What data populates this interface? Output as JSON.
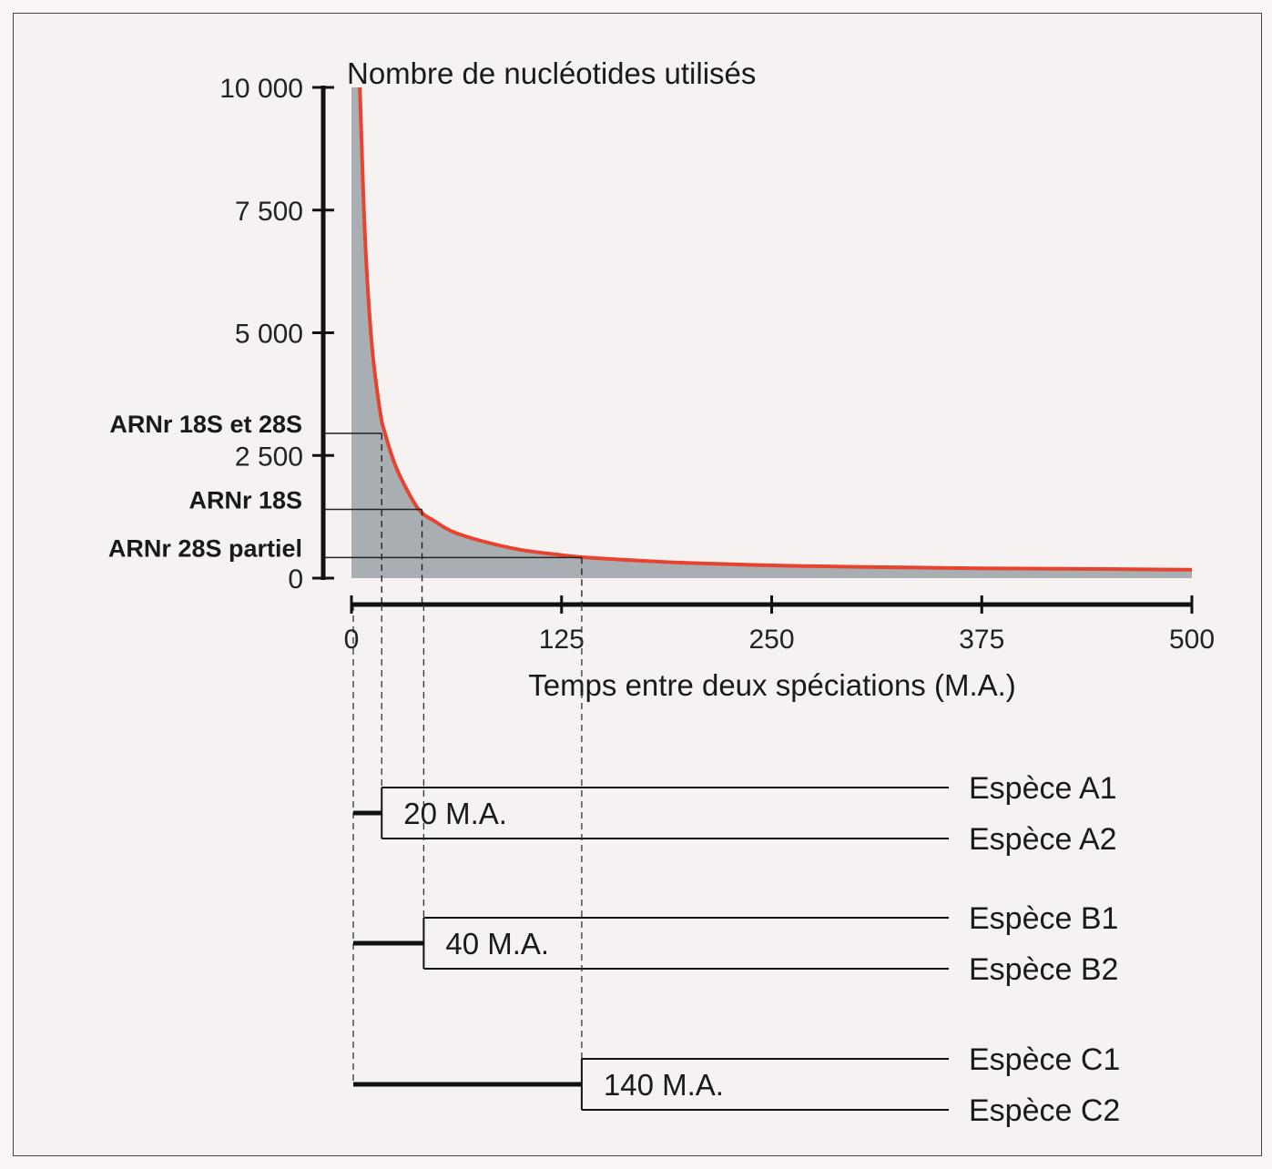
{
  "chart_data": {
    "type": "area",
    "title": "",
    "ylabel": "Nombre de nucléotides utilisés",
    "xlabel": "Temps entre deux spéciations (M.A.)",
    "xlim": [
      0,
      500
    ],
    "ylim": [
      0,
      10000
    ],
    "x_ticks": [
      "0",
      "125",
      "250",
      "375",
      "500"
    ],
    "y_ticks": [
      "0",
      "2 500",
      "5 000",
      "7 500",
      "10 000"
    ],
    "y_tick_values": [
      0,
      2500,
      5000,
      7500,
      10000
    ],
    "x_tick_values": [
      0,
      125,
      250,
      375,
      500
    ],
    "curve_color": "#e8432e",
    "fill_color": "#a9aeb2",
    "series": [
      {
        "x": [
          5,
          8,
          12,
          17,
          20,
          25,
          30,
          40,
          50,
          60,
          75,
          100,
          125,
          140,
          175,
          200,
          250,
          300,
          375,
          450,
          500
        ],
        "values": [
          10000,
          7000,
          4800,
          3400,
          2950,
          2400,
          2000,
          1400,
          1150,
          950,
          780,
          580,
          470,
          420,
          350,
          310,
          260,
          230,
          200,
          185,
          170
        ]
      }
    ],
    "annotations": [
      {
        "label": "ARNr 18S et 28S",
        "x": 18,
        "y": 2950
      },
      {
        "label": "ARNr 18S",
        "x": 42,
        "y": 1400
      },
      {
        "label": "ARNr 28S partiel",
        "x": 137,
        "y": 420
      }
    ]
  },
  "tree": [
    {
      "divergence": "20 M.A.",
      "time": 18,
      "species": [
        "Espèce A1",
        "Espèce A2"
      ]
    },
    {
      "divergence": "40 M.A.",
      "time": 43,
      "species": [
        "Espèce B1",
        "Espèce B2"
      ]
    },
    {
      "divergence": "140 M.A.",
      "time": 137,
      "species": [
        "Espèce C1",
        "Espèce C2"
      ]
    }
  ]
}
